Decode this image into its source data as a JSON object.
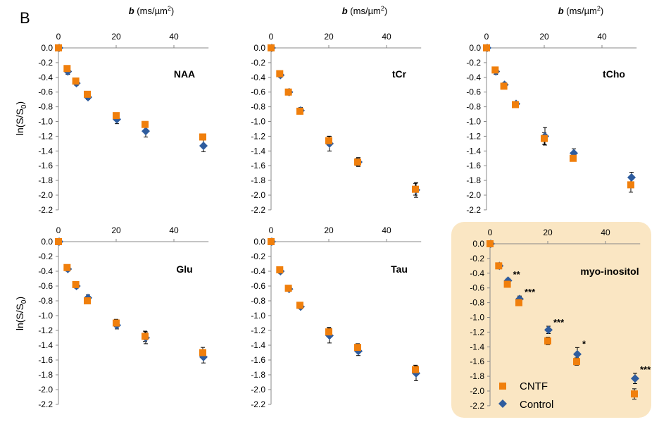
{
  "figure_label": "B",
  "xaxis_label": {
    "bold": "b",
    "unit": " (ms/µm",
    "sup": "2",
    "close": ")"
  },
  "ylabel_main": "ln(S/S",
  "ylabel_sub": "0",
  "ylabel_close": ")",
  "legend": {
    "cntf": "CNTF",
    "control": "Control"
  },
  "colors": {
    "cntf": "#F07F0C",
    "control": "#2E5C9E",
    "highlight": "#FAE6C3",
    "axis": "#888888",
    "text": "#000000"
  },
  "chart_data": [
    {
      "type": "scatter",
      "title": "NAA",
      "x_ticks": [
        0,
        20,
        40
      ],
      "y_ticks": [
        0.0,
        -0.2,
        -0.4,
        -0.6,
        -0.8,
        -1.0,
        -1.2,
        -1.4,
        -1.6,
        -1.8,
        -2.0,
        -2.2
      ],
      "xlim": [
        0,
        50
      ],
      "ylim": [
        -2.2,
        0
      ],
      "series": [
        {
          "name": "CNTF",
          "x": [
            0,
            3,
            6,
            10,
            20,
            30,
            50
          ],
          "y": [
            0.0,
            -0.28,
            -0.45,
            -0.63,
            -0.92,
            -1.04,
            -1.21
          ],
          "err": [
            0,
            0.02,
            0.02,
            0.02,
            0.03,
            0.03,
            0.03
          ]
        },
        {
          "name": "Control",
          "x": [
            0,
            3,
            6,
            10,
            20,
            30,
            50
          ],
          "y": [
            0.0,
            -0.32,
            -0.48,
            -0.67,
            -0.97,
            -1.13,
            -1.33
          ],
          "err": [
            0,
            0.04,
            0.03,
            0.03,
            0.06,
            0.08,
            0.08
          ]
        }
      ]
    },
    {
      "type": "scatter",
      "title": "tCr",
      "x_ticks": [
        0,
        20,
        40
      ],
      "y_ticks": [
        0.0,
        -0.2,
        -0.4,
        -0.6,
        -0.8,
        -1.0,
        -1.2,
        -1.4,
        -1.6,
        -1.8,
        -2.0,
        -2.2
      ],
      "xlim": [
        0,
        50
      ],
      "ylim": [
        -2.2,
        0
      ],
      "series": [
        {
          "name": "CNTF",
          "x": [
            0,
            3,
            6,
            10,
            20,
            30,
            50
          ],
          "y": [
            0.0,
            -0.35,
            -0.6,
            -0.86,
            -1.26,
            -1.55,
            -1.92
          ],
          "err": [
            0,
            0.02,
            0.03,
            0.03,
            0.06,
            0.05,
            0.08
          ]
        },
        {
          "name": "Control",
          "x": [
            0,
            3,
            6,
            10,
            20,
            30,
            50
          ],
          "y": [
            0.0,
            -0.37,
            -0.6,
            -0.85,
            -1.3,
            -1.55,
            -1.93
          ],
          "err": [
            0,
            0.03,
            0.04,
            0.04,
            0.1,
            0.06,
            0.1
          ]
        }
      ]
    },
    {
      "type": "scatter",
      "title": "tCho",
      "x_ticks": [
        0,
        20,
        40
      ],
      "y_ticks": [
        0.0,
        -0.2,
        -0.4,
        -0.6,
        -0.8,
        -1.0,
        -1.2,
        -1.4,
        -1.6,
        -1.8,
        -2.0,
        -2.2
      ],
      "xlim": [
        0,
        50
      ],
      "ylim": [
        -2.2,
        0
      ],
      "series": [
        {
          "name": "CNTF",
          "x": [
            0,
            3,
            6,
            10,
            20,
            30,
            50
          ],
          "y": [
            0.0,
            -0.3,
            -0.52,
            -0.77,
            -1.23,
            -1.5,
            -1.86
          ],
          "err": [
            0,
            0.03,
            0.03,
            0.03,
            0.08,
            0.04,
            0.1
          ]
        },
        {
          "name": "Control",
          "x": [
            0,
            3,
            6,
            10,
            20,
            30,
            50
          ],
          "y": [
            0.0,
            -0.32,
            -0.5,
            -0.76,
            -1.2,
            -1.43,
            -1.76
          ],
          "err": [
            0,
            0.04,
            0.03,
            0.03,
            0.12,
            0.06,
            0.07
          ]
        }
      ]
    },
    {
      "type": "scatter",
      "title": "Glu",
      "x_ticks": [
        0,
        20,
        40
      ],
      "y_ticks": [
        0.0,
        -0.2,
        -0.4,
        -0.6,
        -0.8,
        -1.0,
        -1.2,
        -1.4,
        -1.6,
        -1.8,
        -2.0,
        -2.2
      ],
      "xlim": [
        0,
        50
      ],
      "ylim": [
        -2.2,
        0
      ],
      "series": [
        {
          "name": "CNTF",
          "x": [
            0,
            3,
            6,
            10,
            20,
            30,
            50
          ],
          "y": [
            0.0,
            -0.35,
            -0.58,
            -0.8,
            -1.1,
            -1.28,
            -1.5
          ],
          "err": [
            0,
            0.02,
            0.03,
            0.04,
            0.05,
            0.07,
            0.07
          ]
        },
        {
          "name": "Control",
          "x": [
            0,
            3,
            6,
            10,
            20,
            30,
            50
          ],
          "y": [
            0.0,
            -0.37,
            -0.6,
            -0.76,
            -1.13,
            -1.3,
            -1.56
          ],
          "err": [
            0,
            0.03,
            0.03,
            0.04,
            0.05,
            0.08,
            0.08
          ]
        }
      ]
    },
    {
      "type": "scatter",
      "title": "Tau",
      "x_ticks": [
        0,
        20,
        40
      ],
      "y_ticks": [
        0.0,
        -0.2,
        -0.4,
        -0.6,
        -0.8,
        -1.0,
        -1.2,
        -1.4,
        -1.6,
        -1.8,
        -2.0,
        -2.2
      ],
      "xlim": [
        0,
        50
      ],
      "ylim": [
        -2.2,
        0
      ],
      "series": [
        {
          "name": "CNTF",
          "x": [
            0,
            3,
            6,
            10,
            20,
            30,
            50
          ],
          "y": [
            0.0,
            -0.38,
            -0.63,
            -0.86,
            -1.22,
            -1.43,
            -1.73
          ],
          "err": [
            0,
            0.02,
            0.02,
            0.02,
            0.06,
            0.05,
            0.06
          ]
        },
        {
          "name": "Control",
          "x": [
            0,
            3,
            6,
            10,
            20,
            30,
            50
          ],
          "y": [
            0.0,
            -0.4,
            -0.64,
            -0.88,
            -1.27,
            -1.48,
            -1.78
          ],
          "err": [
            0,
            0.03,
            0.03,
            0.03,
            0.1,
            0.06,
            0.1
          ]
        }
      ]
    },
    {
      "type": "scatter",
      "title": "myo-inositol",
      "highlighted": true,
      "x_ticks": [
        0,
        20,
        40
      ],
      "y_ticks": [
        0.0,
        -0.2,
        -0.4,
        -0.6,
        -0.8,
        -1.0,
        -1.2,
        -1.4,
        -1.6,
        -1.8,
        -2.0,
        -2.2
      ],
      "xlim": [
        0,
        50
      ],
      "ylim": [
        -2.2,
        0
      ],
      "significance": [
        {
          "x": 6,
          "label": "**"
        },
        {
          "x": 10,
          "label": "***"
        },
        {
          "x": 20,
          "label": "***"
        },
        {
          "x": 30,
          "label": "*"
        },
        {
          "x": 50,
          "label": "***"
        }
      ],
      "series": [
        {
          "name": "CNTF",
          "x": [
            0,
            3,
            6,
            10,
            20,
            30,
            50
          ],
          "y": [
            0.0,
            -0.3,
            -0.55,
            -0.8,
            -1.32,
            -1.6,
            -2.04
          ],
          "err": [
            0,
            0.02,
            0.03,
            0.03,
            0.05,
            0.05,
            0.07
          ]
        },
        {
          "name": "Control",
          "x": [
            0,
            3,
            6,
            10,
            20,
            30,
            50
          ],
          "y": [
            0.0,
            -0.3,
            -0.5,
            -0.75,
            -1.17,
            -1.5,
            -1.83
          ],
          "err": [
            0,
            0.03,
            0.03,
            0.04,
            0.05,
            0.09,
            0.07
          ]
        }
      ]
    }
  ]
}
